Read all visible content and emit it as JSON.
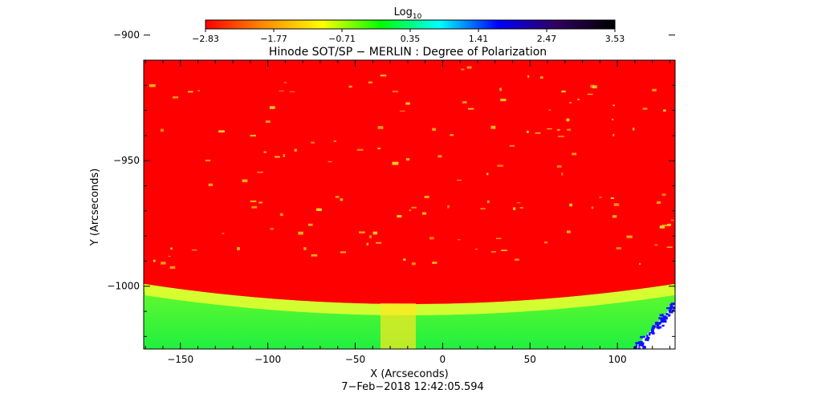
{
  "chart_data": {
    "type": "heatmap",
    "title": "Hinode SOT/SP − MERLIN : Degree of Polarization",
    "xlabel": "X (Arcseconds)",
    "ylabel": "Y (Arcseconds)",
    "timestamp": "7−Feb−2018 12:42:05.594",
    "xlim": [
      -171,
      133
    ],
    "ylim": [
      -1025,
      -910
    ],
    "x_ticks": [
      {
        "value": -150,
        "label": "−150"
      },
      {
        "value": -100,
        "label": "−100"
      },
      {
        "value": -50,
        "label": "−50"
      },
      {
        "value": 0,
        "label": "0"
      },
      {
        "value": 50,
        "label": "50"
      },
      {
        "value": 100,
        "label": "100"
      }
    ],
    "y_ticks": [
      {
        "value": -900,
        "label": "−900"
      },
      {
        "value": -950,
        "label": "−950"
      },
      {
        "value": -1000,
        "label": "−1000"
      }
    ],
    "colorbar": {
      "title_base": "Log",
      "title_subscript": "10",
      "range": [
        -2.83,
        3.53
      ],
      "ticks": [
        {
          "value": -2.83,
          "label": "−2.83"
        },
        {
          "value": -1.77,
          "label": "−1.77"
        },
        {
          "value": -0.71,
          "label": "−0.71"
        },
        {
          "value": 0.35,
          "label": "0.35"
        },
        {
          "value": 1.41,
          "label": "1.41"
        },
        {
          "value": 2.47,
          "label": "2.47"
        },
        {
          "value": 3.53,
          "label": "3.53"
        }
      ],
      "color_stops": [
        "#ff0000",
        "#ff8c00",
        "#ffff00",
        "#00ff00",
        "#00ffff",
        "#0000ff",
        "#300060",
        "#000000"
      ]
    },
    "colors": {
      "disk": "#ff0000",
      "limb_band": "#ffff30",
      "off_limb": "#30ff30",
      "speckle": "#ffd020",
      "corner_blue": "#1010ff"
    }
  }
}
